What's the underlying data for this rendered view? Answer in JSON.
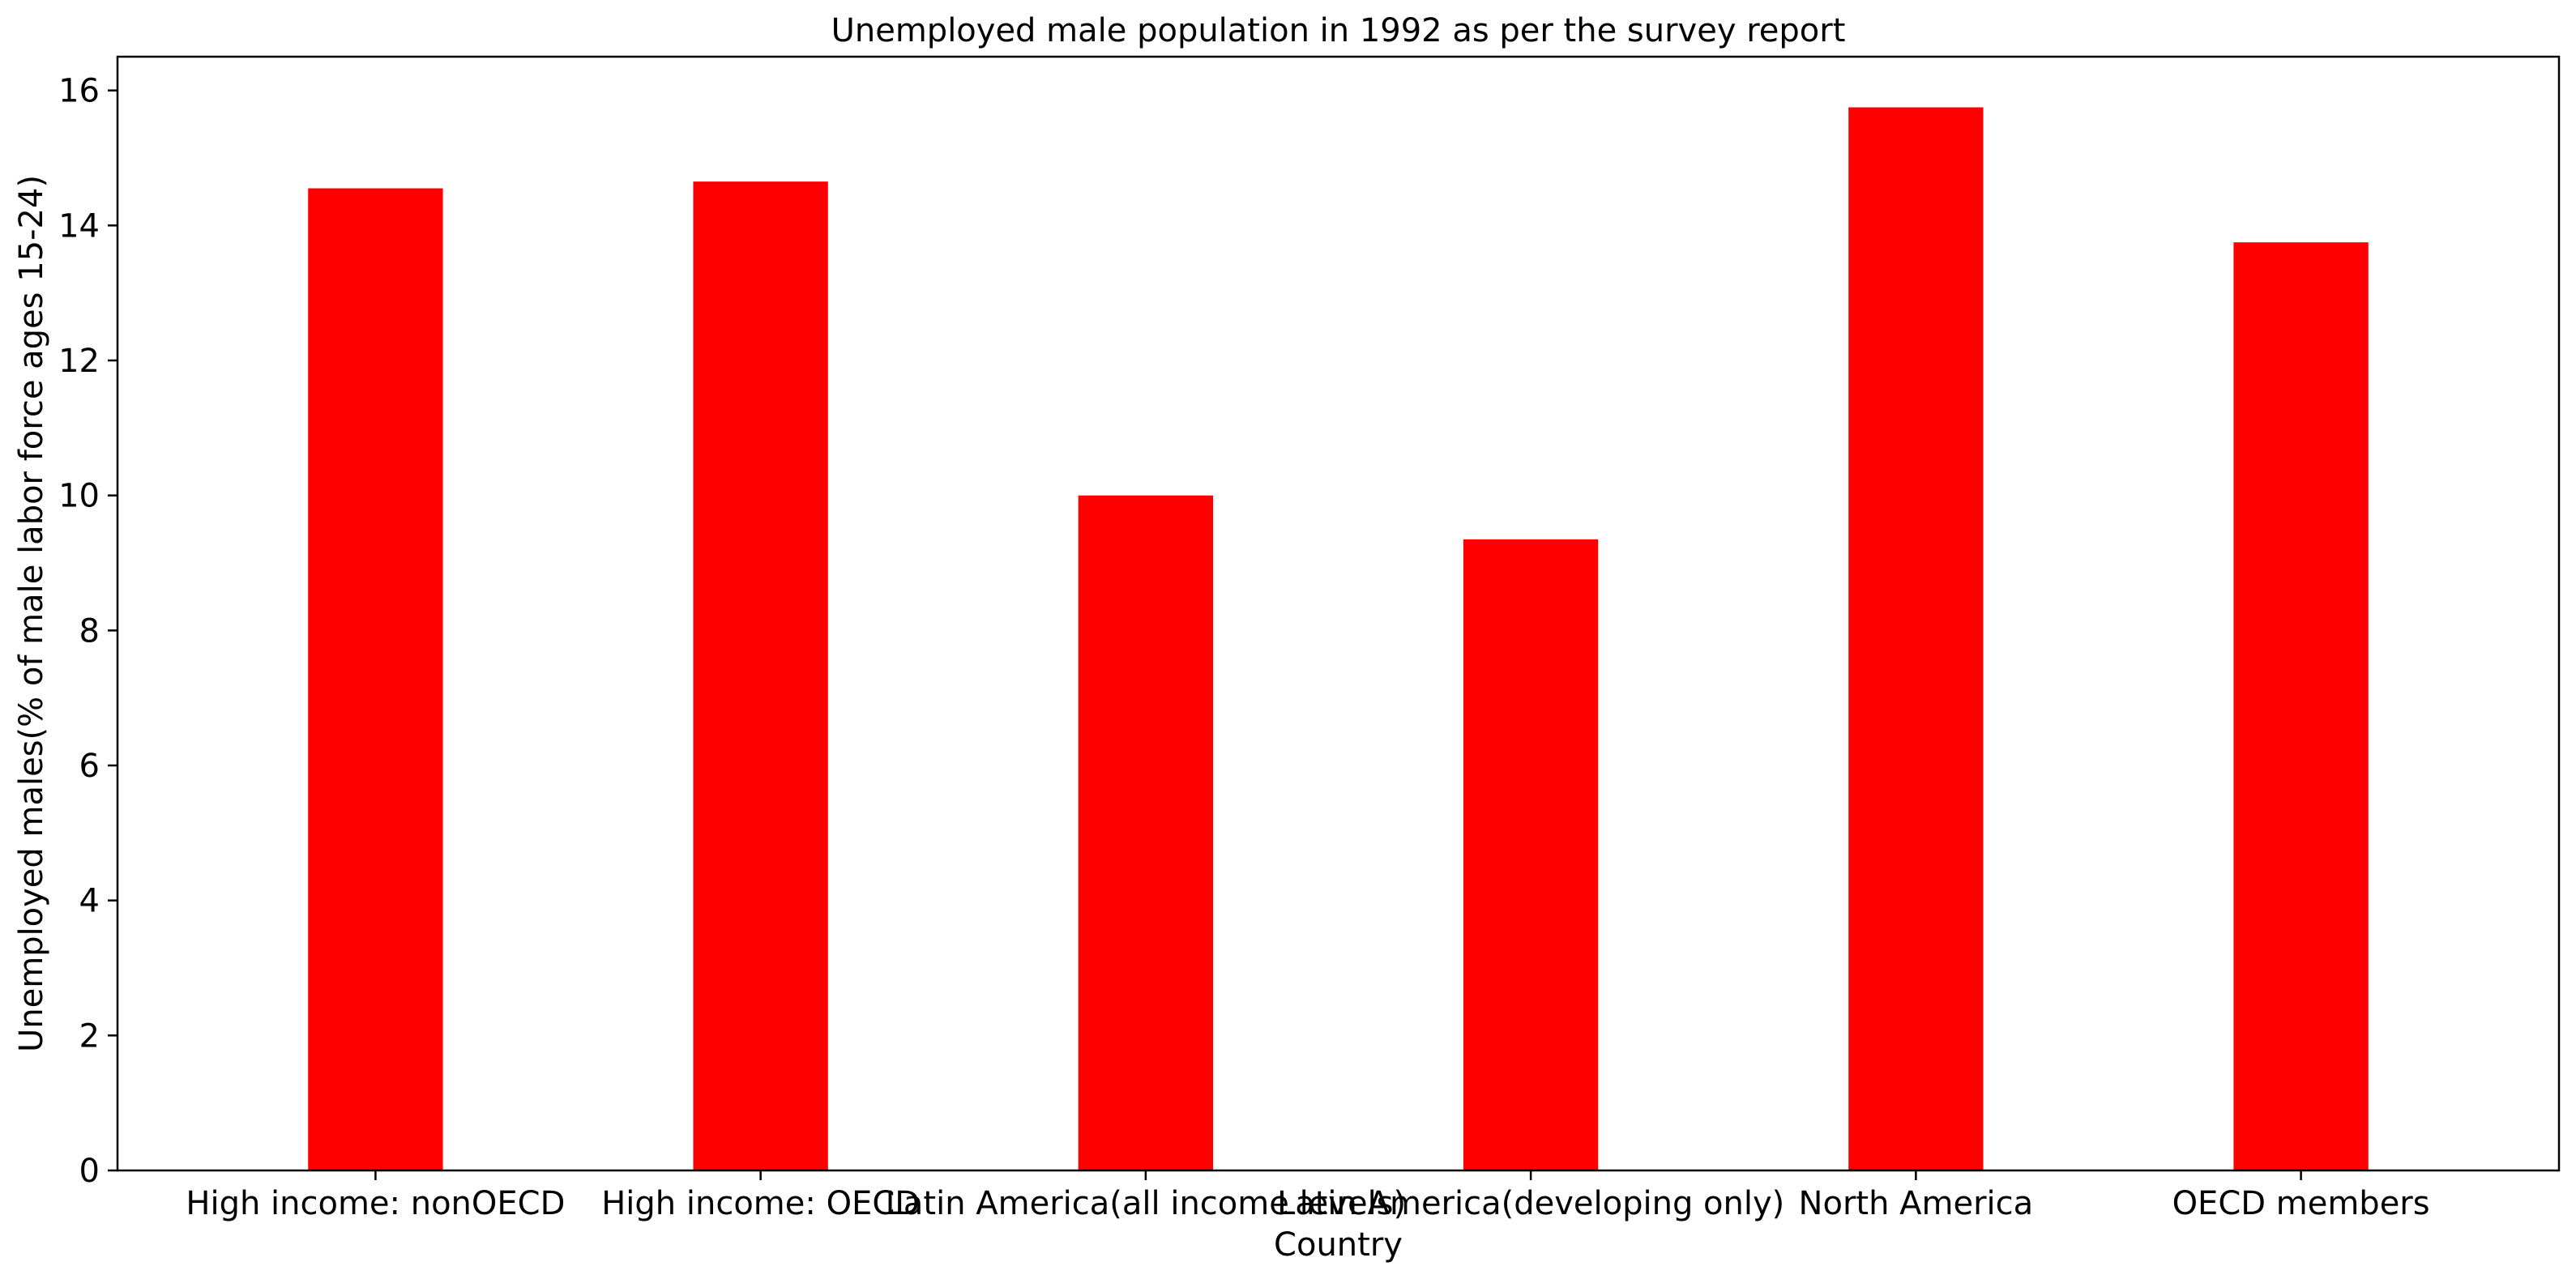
{
  "chart_data": {
    "type": "bar",
    "title": "Unemployed male population in 1992 as per the survey report",
    "xlabel": "Country",
    "ylabel": "Unemployed males(% of male labor force ages 15-24)",
    "categories": [
      "High income: nonOECD",
      "High income: OECD",
      "Latin America(all income levels)",
      "Latin America(developing only)",
      "North America",
      "OECD members"
    ],
    "series": [
      {
        "values": [
          14.55,
          14.65,
          10.0,
          9.35,
          15.75,
          13.75
        ],
        "color": "#ff0000"
      }
    ],
    "ylim": [
      0,
      16.5
    ],
    "yticks": [
      0,
      2,
      4,
      6,
      8,
      10,
      12,
      14,
      16
    ],
    "grid": false,
    "legend": "none"
  }
}
